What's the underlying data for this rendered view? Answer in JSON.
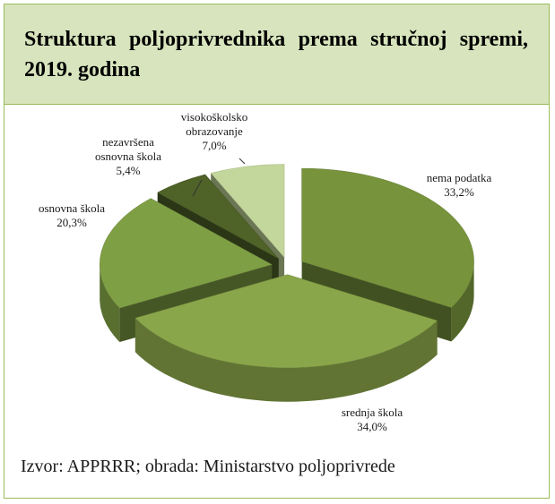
{
  "chart_data": {
    "type": "pie",
    "title": "Struktura poljoprivrednika prema stručnoj spremi, 2019. godina",
    "categories": [
      "nema podatka",
      "srednja škola",
      "osnovna škola",
      "nezavršena osnovna škola",
      "visokoškolsko obrazovanje"
    ],
    "values": [
      33.2,
      34.0,
      20.3,
      5.4,
      7.0
    ],
    "value_labels": [
      "33,2%",
      "34,0%",
      "20,3%",
      "5,4%",
      "7,0%"
    ],
    "colors": [
      "#77933c",
      "#8aa64a",
      "#7f9f45",
      "#4f6228",
      "#c3d69b"
    ],
    "source": "Izvor: APPRRR; obrada: Ministarstvo poljoprivrede"
  }
}
